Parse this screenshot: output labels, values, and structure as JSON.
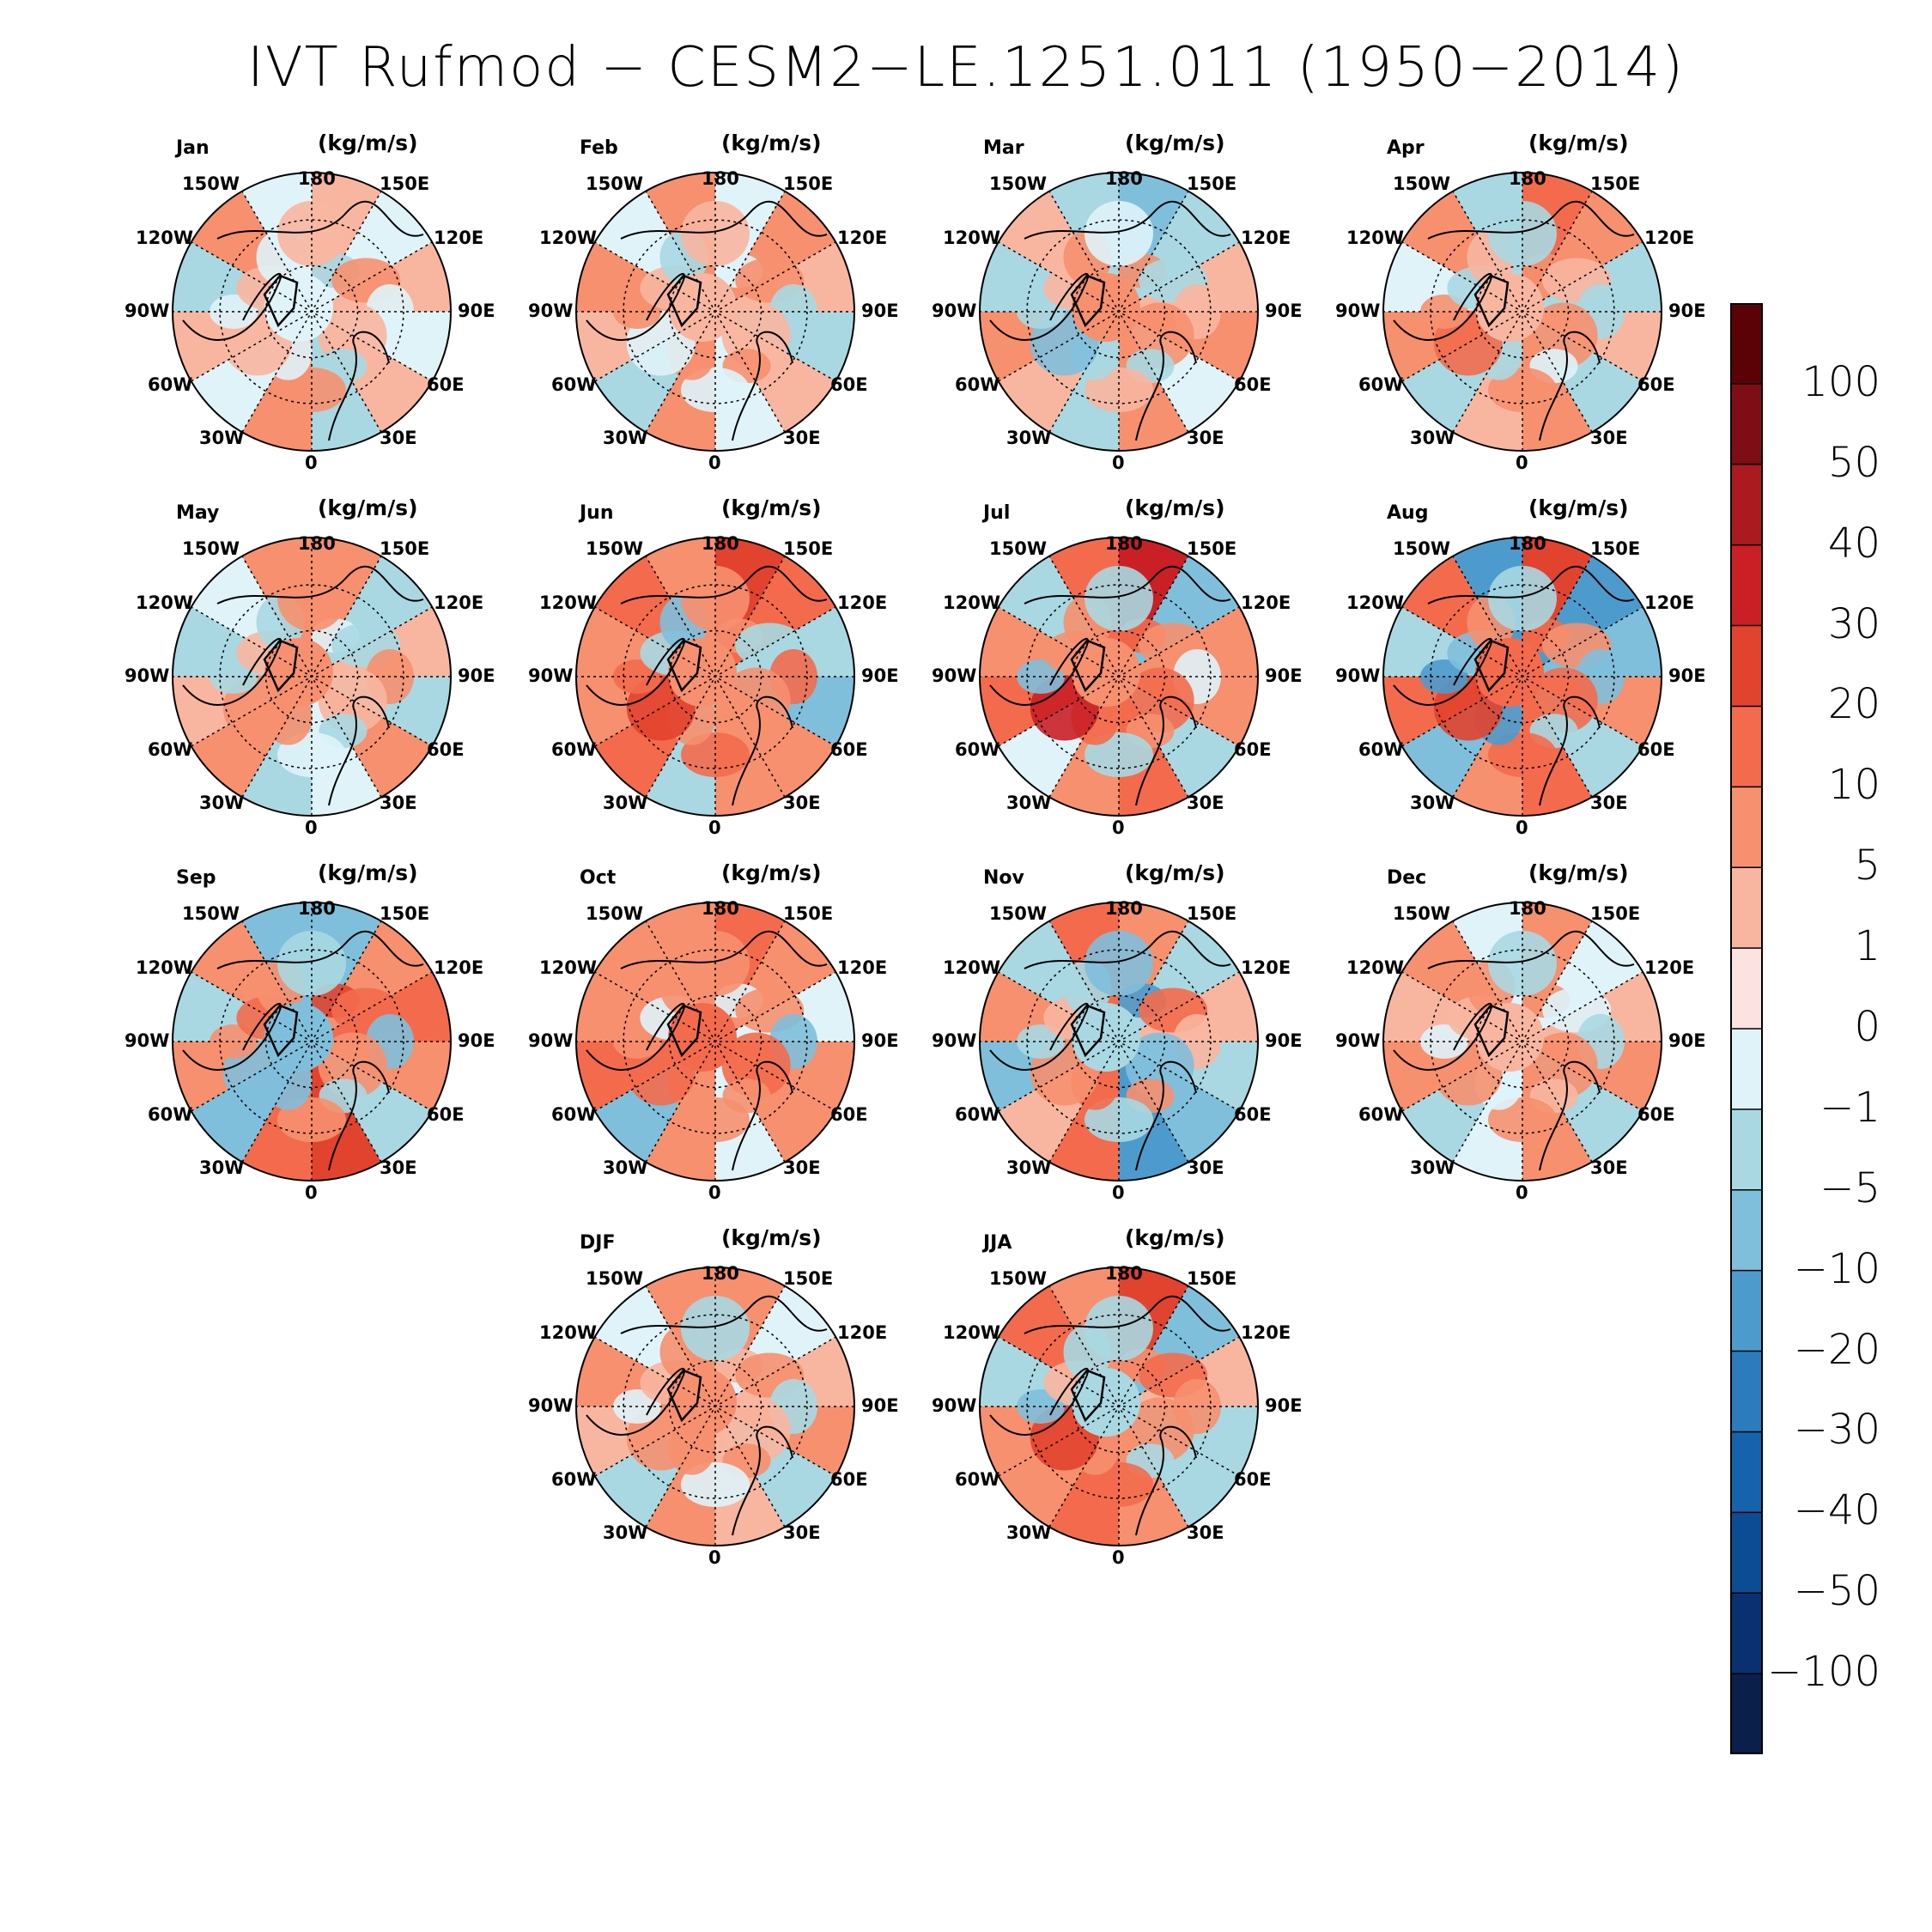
{
  "title": "IVT Rufmod − CESM2−LE.1251.011 (1950−2014)",
  "units": "(kg/m/s)",
  "longitude_labels": {
    "top": "180",
    "bottom": "0",
    "upper_left": "150W",
    "upper_right": "150E",
    "mid_upper_left": "120W",
    "mid_upper_right": "120E",
    "left": "90W",
    "right": "90E",
    "mid_lower_left": "60W",
    "mid_lower_right": "60E",
    "lower_left": "30W",
    "lower_right": "30E"
  },
  "panels": [
    {
      "label": "Jan",
      "pattern": [
        1,
        -1,
        1,
        -1,
        1,
        -5,
        5,
        -1,
        1,
        -5,
        5,
        -1
      ]
    },
    {
      "label": "Feb",
      "pattern": [
        -1,
        5,
        1,
        -5,
        1,
        -1,
        5,
        -5,
        1,
        5,
        -1,
        5
      ]
    },
    {
      "label": "Mar",
      "pattern": [
        -10,
        -5,
        1,
        5,
        -1,
        5,
        -5,
        1,
        5,
        -5,
        1,
        -5
      ]
    },
    {
      "label": "Apr",
      "pattern": [
        10,
        5,
        -5,
        1,
        -5,
        5,
        1,
        -5,
        5,
        -1,
        5,
        -5
      ]
    },
    {
      "label": "May",
      "pattern": [
        5,
        -5,
        1,
        -5,
        5,
        -1,
        -5,
        5,
        1,
        -5,
        -1,
        5
      ]
    },
    {
      "label": "Jun",
      "pattern": [
        20,
        10,
        -5,
        -10,
        5,
        5,
        -5,
        10,
        5,
        5,
        10,
        5
      ]
    },
    {
      "label": "Jul",
      "pattern": [
        30,
        -10,
        5,
        5,
        -5,
        10,
        5,
        -1,
        10,
        5,
        -5,
        10
      ]
    },
    {
      "label": "Aug",
      "pattern": [
        20,
        -20,
        -10,
        5,
        -5,
        10,
        5,
        -10,
        10,
        -5,
        10,
        -20
      ]
    },
    {
      "label": "Sep",
      "pattern": [
        -10,
        5,
        10,
        5,
        -5,
        20,
        10,
        -10,
        5,
        -5,
        5,
        -10
      ]
    },
    {
      "label": "Oct",
      "pattern": [
        10,
        5,
        -1,
        5,
        5,
        -1,
        5,
        -10,
        10,
        5,
        5,
        5
      ]
    },
    {
      "label": "Nov",
      "pattern": [
        5,
        -5,
        1,
        -5,
        -10,
        -20,
        10,
        1,
        -10,
        5,
        -5,
        10
      ]
    },
    {
      "label": "Dec",
      "pattern": [
        5,
        -1,
        1,
        5,
        -5,
        5,
        -1,
        -5,
        5,
        1,
        5,
        -1
      ]
    },
    {
      "label": "DJF",
      "pattern": [
        5,
        -1,
        1,
        5,
        -5,
        1,
        5,
        -5,
        1,
        5,
        -1,
        5
      ]
    },
    {
      "label": "JJA",
      "pattern": [
        20,
        -10,
        1,
        -5,
        -5,
        5,
        10,
        5,
        5,
        -5,
        10,
        5
      ]
    }
  ],
  "colorbar": {
    "ticks": [
      "100",
      "50",
      "40",
      "30",
      "20",
      "10",
      "5",
      "1",
      "0",
      "−1",
      "−5",
      "−10",
      "−20",
      "−30",
      "−40",
      "−50",
      "−100"
    ],
    "colors": [
      "#5a0206",
      "#7e0d15",
      "#ab1a1f",
      "#cb1f26",
      "#e2432e",
      "#f36b4c",
      "#f6906f",
      "#f8b6a0",
      "#fde2e2",
      "#dff3f9",
      "#a9d8e2",
      "#7fbfdb",
      "#4d9bcd",
      "#2b7bbd",
      "#1762ac",
      "#0c4c94",
      "#0a3072",
      "#0a1f4a"
    ]
  },
  "palette": {
    "30": "#cb1f26",
    "20": "#e2432e",
    "10": "#f36b4c",
    "5": "#f6906f",
    "1": "#f8b6a0",
    "-1": "#dff3f9",
    "-5": "#a9d8e2",
    "-10": "#7fbfdb",
    "-20": "#4d9bcd",
    "background": "#a9d8e2"
  }
}
